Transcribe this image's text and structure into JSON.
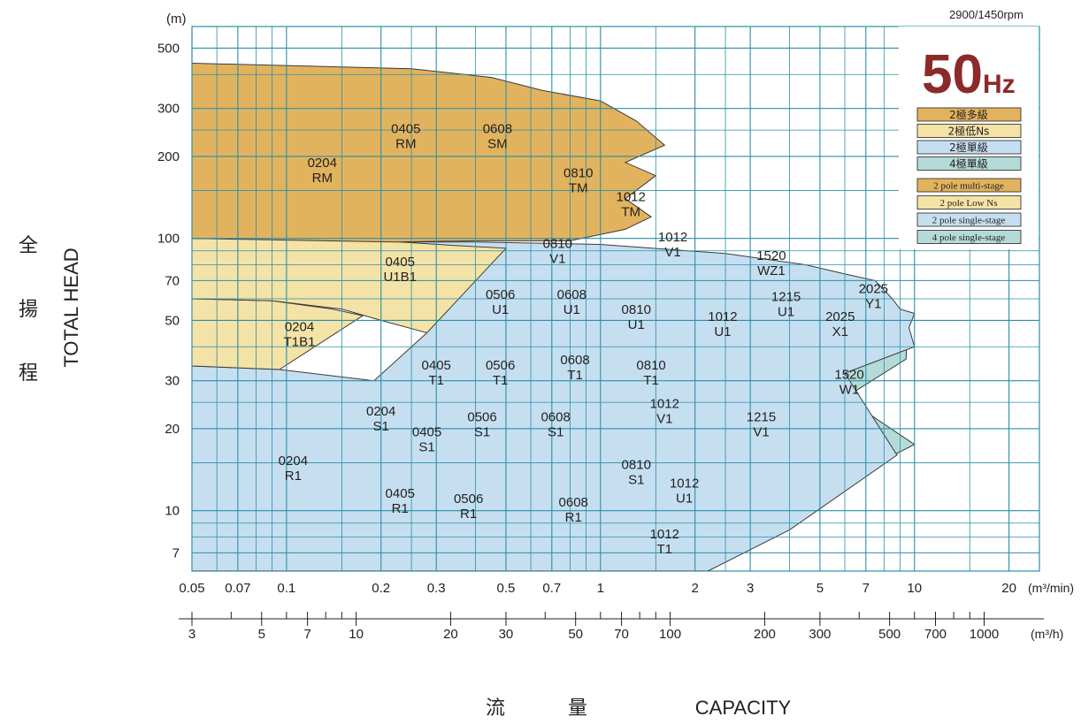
{
  "chart_data": {
    "type": "area",
    "title": "50Hz",
    "title_unit": "Hz",
    "subtitle": "2900/1450rpm",
    "ylabel": "TOTAL HEAD",
    "ylabel_zh": [
      "全",
      "揚",
      "程"
    ],
    "y_unit": "(m)",
    "xlabel": "CAPACITY",
    "xlabel_zh": [
      "流",
      "量"
    ],
    "x_unit": "(m³/min)",
    "x2_unit": "(m³/h)",
    "y_scale": "log",
    "x_scale": "log",
    "xlim": [
      0.05,
      25
    ],
    "ylim": [
      6,
      600
    ],
    "grid": true,
    "legend_position": "top-right",
    "y_ticks": [
      "7",
      "10",
      "20",
      "30",
      "50",
      "70",
      "100",
      "200",
      "300",
      "500"
    ],
    "y_tick_values": [
      7,
      10,
      20,
      30,
      50,
      70,
      100,
      200,
      300,
      500
    ],
    "x_ticks": [
      "0.05",
      "0.07",
      "0.1",
      "0.2",
      "0.3",
      "0.5",
      "0.7",
      "1",
      "2",
      "3",
      "5",
      "7",
      "10",
      "20"
    ],
    "x_tick_values": [
      0.05,
      0.07,
      0.1,
      0.2,
      0.3,
      0.5,
      0.7,
      1,
      2,
      3,
      5,
      7,
      10,
      20
    ],
    "x2_ticks": [
      "3",
      "5",
      "7",
      "10",
      "20",
      "30",
      "50",
      "70",
      "100",
      "200",
      "300",
      "500",
      "700",
      "1000"
    ],
    "x2_tick_values": [
      3,
      5,
      7,
      10,
      20,
      30,
      50,
      70,
      100,
      200,
      300,
      500,
      700,
      1000
    ],
    "legend": [
      {
        "label_zh": "2極多級",
        "label_en": "2 pole multi-stage",
        "color": "#e2b35e"
      },
      {
        "label_zh": "2極低Ns",
        "label_en": "2 pole Low Ns",
        "color": "#f4e3a6"
      },
      {
        "label_zh": "2極單級",
        "label_en": "2 pole single-stage",
        "color": "#c6dff0"
      },
      {
        "label_zh": "4極單級",
        "label_en": "4 pole single-stage",
        "color": "#b4dbd8"
      }
    ],
    "series": [
      {
        "category": "4 pole single-stage",
        "color": "#b4dbd8",
        "labels": [],
        "polygon": [
          [
            0.7,
            6
          ],
          [
            2.2,
            6
          ],
          [
            3.5,
            9
          ],
          [
            6,
            13
          ],
          [
            10,
            17.5
          ],
          [
            6,
            26
          ],
          [
            9.4,
            36
          ],
          [
            9.5,
            46
          ],
          [
            7,
            52
          ],
          [
            3.2,
            60
          ],
          [
            2,
            50
          ],
          [
            1.35,
            23
          ],
          [
            0.7,
            11
          ]
        ]
      },
      {
        "category": "2 pole single-stage",
        "color": "#c6dff0",
        "labels": [
          "0204 R1",
          "0405 R1",
          "0506 R1",
          "0608 R1",
          "1012 T1",
          "0204 S1",
          "0405 S1",
          "0506 S1",
          "0608 S1",
          "0810 S1",
          "1012 U1",
          "0405 T1",
          "0506 T1",
          "0608 T1",
          "0810 T1",
          "1012 V1",
          "1012 T1",
          "1215 V1",
          "0405 U1B1",
          "0506 U1",
          "0608 U1",
          "0810 U1",
          "1012 U1",
          "0810 V1",
          "1012 V1",
          "1215 U1",
          "1520 W1",
          "1520 WZ1",
          "2025 X1",
          "2025 Y1"
        ],
        "polygon": [
          [
            0.05,
            6
          ],
          [
            0.05,
            34
          ],
          [
            0.095,
            33
          ],
          [
            0.19,
            30
          ],
          [
            0.28,
            45
          ],
          [
            0.22,
            97
          ],
          [
            0.4,
            97
          ],
          [
            1.0,
            95
          ],
          [
            2.5,
            88
          ],
          [
            4.5,
            80
          ],
          [
            6,
            74
          ],
          [
            7.5,
            70
          ],
          [
            8.5,
            60
          ],
          [
            9,
            55
          ],
          [
            10,
            53
          ],
          [
            9.6,
            47
          ],
          [
            10,
            40
          ],
          [
            6,
            32
          ],
          [
            8.8,
            16
          ],
          [
            4,
            8.5
          ],
          [
            2.2,
            6
          ]
        ]
      },
      {
        "category": "2 pole Low Ns",
        "color": "#f4e3a6",
        "labels": [
          "0204 T1B1"
        ],
        "polygon": [
          [
            0.05,
            34
          ],
          [
            0.05,
            60
          ],
          [
            0.09,
            59
          ],
          [
            0.14,
            55
          ],
          [
            0.175,
            52
          ],
          [
            0.095,
            33
          ]
        ]
      },
      {
        "category": "2 pole Low Ns",
        "color": "#f4e3a6",
        "labels": [],
        "polygon": [
          [
            0.05,
            60
          ],
          [
            0.05,
            100
          ],
          [
            0.2,
            98
          ],
          [
            0.35,
            94
          ],
          [
            0.5,
            92
          ],
          [
            0.28,
            45
          ],
          [
            0.2,
            50
          ],
          [
            0.15,
            55
          ],
          [
            0.09,
            59
          ]
        ]
      },
      {
        "category": "2 pole multi-stage",
        "color": "#e2b35e",
        "labels": [
          "0204 RM",
          "0405 RM",
          "0608 SM",
          "0810 TM",
          "1012 TM"
        ],
        "polygon": [
          [
            0.05,
            100
          ],
          [
            0.05,
            440
          ],
          [
            0.25,
            420
          ],
          [
            0.45,
            390
          ],
          [
            0.65,
            350
          ],
          [
            1.0,
            320
          ],
          [
            1.3,
            270
          ],
          [
            1.6,
            220
          ],
          [
            1.2,
            190
          ],
          [
            1.5,
            170
          ],
          [
            1.2,
            140
          ],
          [
            1.45,
            120
          ],
          [
            1.2,
            108
          ],
          [
            0.8,
            98
          ],
          [
            0.4,
            98
          ],
          [
            0.22,
            97
          ]
        ]
      }
    ]
  }
}
